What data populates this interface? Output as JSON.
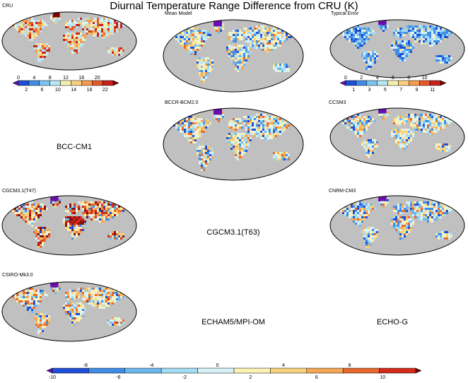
{
  "title": "Diurnal Temperature Range Difference from CRU (K)",
  "panels": [
    {
      "id": "cru",
      "label": "CRU",
      "scheme": "abs",
      "warm": 0.55,
      "cool": 0.0
    },
    {
      "id": "mean",
      "label": "Mean Model",
      "scheme": "diff",
      "warm": 0.25,
      "cool": 0.55
    },
    {
      "id": "typical",
      "label": "Typical Error",
      "scheme": "err",
      "warm": 0.05,
      "cool": 0.9
    },
    {
      "id": "bccr",
      "label": "BCCR-BCM2.0",
      "scheme": "diff",
      "warm": 0.3,
      "cool": 0.55
    },
    {
      "id": "ccsm3",
      "label": "CCSM3",
      "scheme": "diff",
      "warm": 0.25,
      "cool": 0.55
    },
    {
      "id": "cgcm47",
      "label": "CGCM3.1(T47)",
      "scheme": "diff",
      "warm": 0.85,
      "cool": 0.3
    },
    {
      "id": "cnrm",
      "label": "CNRM-CM3",
      "scheme": "diff",
      "warm": 0.35,
      "cool": 0.6
    },
    {
      "id": "csiro",
      "label": "CSIRO-Mk3.0",
      "scheme": "diff",
      "warm": 0.45,
      "cool": 0.45
    }
  ],
  "missing_panels": [
    "BCC-CM1",
    "CGCM3.1(T63)",
    "ECHAM5/MPI-OM",
    "ECHO-G"
  ],
  "colorbars": {
    "cru": {
      "colors": [
        "#6a0dad",
        "#1f4fd8",
        "#3f8de6",
        "#7cc3f0",
        "#b8e6f6",
        "#f6f0b0",
        "#f8cf7c",
        "#f49c4f",
        "#e6582a",
        "#c8201a",
        "#7a0000"
      ],
      "top_ticks": [
        "0",
        "4",
        "8",
        "12",
        "16",
        "20"
      ],
      "bottom_ticks": [
        "2",
        "6",
        "10",
        "14",
        "18",
        "22"
      ]
    },
    "err": {
      "colors": [
        "#6a0dad",
        "#1f4fd8",
        "#3f8de6",
        "#7cc3f0",
        "#b8e6f6",
        "#f6f0b0",
        "#f8cf7c",
        "#f49c4f",
        "#e6582a",
        "#c8201a",
        "#7a0000"
      ],
      "top_ticks": [
        "0",
        "2",
        "4",
        "6",
        "8",
        "10"
      ],
      "bottom_ticks": [
        "1",
        "3",
        "5",
        "7",
        "9",
        "11"
      ]
    },
    "diff": {
      "colors": [
        "#6a0dad",
        "#1f4fd8",
        "#3f8de6",
        "#6cb6ec",
        "#a4dcf4",
        "#d8f2f8",
        "#fbf2b4",
        "#f8d37e",
        "#f4a652",
        "#e8692e",
        "#d42a1c",
        "#7a0000"
      ],
      "top_ticks": [
        "-8",
        "-4",
        "0",
        "4",
        "8"
      ],
      "bottom_ticks": [
        "-10",
        "-6",
        "-2",
        "2",
        "6",
        "10"
      ]
    }
  }
}
